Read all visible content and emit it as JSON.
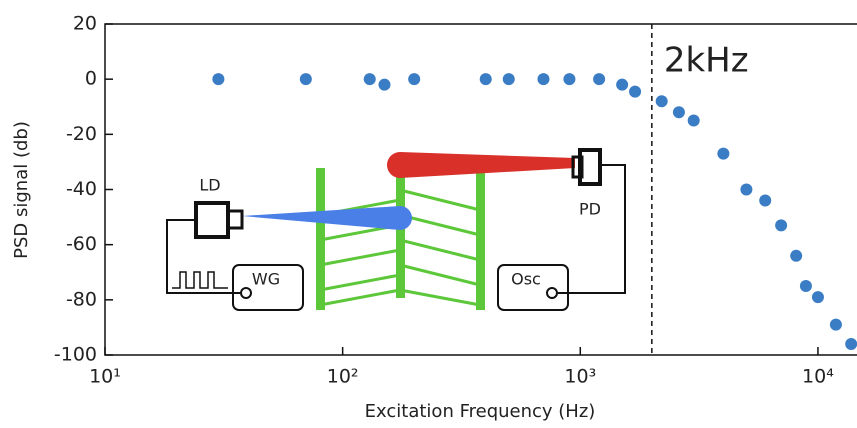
{
  "chart_data": {
    "type": "scatter",
    "xlabel": "Excitation Frequency (Hz)",
    "ylabel": "PSD signal (db)",
    "xscale": "log",
    "xlim": [
      10,
      14600
    ],
    "ylim": [
      -100,
      20
    ],
    "xticks": [
      {
        "value": 10,
        "label": "10¹"
      },
      {
        "value": 100,
        "label": "10²"
      },
      {
        "value": 1000,
        "label": "10³"
      },
      {
        "value": 10000,
        "label": "10⁴"
      }
    ],
    "yticks": [
      20,
      0,
      -20,
      -40,
      -60,
      -80,
      -100
    ],
    "color": "#3b7dc4",
    "x": [
      30,
      70,
      130,
      150,
      200,
      400,
      500,
      700,
      900,
      1200,
      1500,
      1700,
      2200,
      2600,
      3000,
      4000,
      5000,
      6000,
      7000,
      8100,
      8900,
      10000,
      11900,
      13800
    ],
    "values": [
      0,
      0,
      0,
      -2,
      0,
      0,
      0,
      0,
      0,
      0,
      -2,
      -4.5,
      -8,
      -12,
      -15,
      -27,
      -40,
      -44,
      -53,
      -64,
      -75,
      -79,
      -89,
      -96
    ],
    "annotation": {
      "text": "2kHz",
      "x": 2000
    },
    "inset_labels": [
      "LD",
      "PD",
      "WG",
      "Osc"
    ]
  }
}
